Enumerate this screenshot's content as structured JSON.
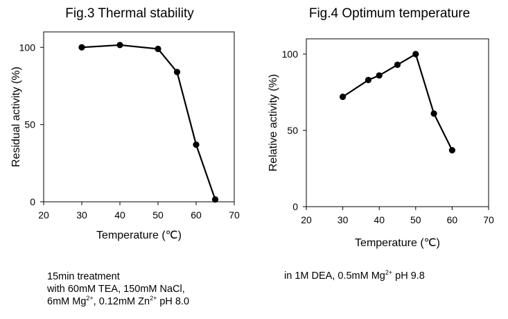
{
  "chart_data": [
    {
      "type": "line",
      "title": "Fig.3 Thermal stability",
      "xlabel": "Temperature (℃)",
      "ylabel": "Residual activity (%)",
      "xlim": [
        20,
        70
      ],
      "ylim": [
        0,
        110
      ],
      "xticks": [
        20,
        30,
        40,
        50,
        60,
        70
      ],
      "yticks": [
        0,
        50,
        100
      ],
      "grid": false,
      "series": [
        {
          "x": [
            30,
            40,
            50,
            55,
            60,
            65
          ],
          "y": [
            100,
            101.5,
            99,
            84,
            37,
            1.5
          ]
        }
      ],
      "note_lines": [
        {
          "parts": [
            {
              "t": "15min treatment"
            }
          ]
        },
        {
          "parts": [
            {
              "t": "with 60mM TEA, 150mM NaCl,"
            }
          ]
        },
        {
          "parts": [
            {
              "t": "6mM Mg"
            },
            {
              "sup": "2+"
            },
            {
              "t": ", 0.12mM Zn"
            },
            {
              "sup": "2+"
            },
            {
              "t": " pH 8.0"
            }
          ]
        }
      ]
    },
    {
      "type": "line",
      "title": "Fig.4 Optimum temperature",
      "xlabel": "Temperature (℃)",
      "ylabel": "Relative activity (%)",
      "xlim": [
        20,
        70
      ],
      "ylim": [
        0,
        110
      ],
      "xticks": [
        20,
        30,
        40,
        50,
        60,
        70
      ],
      "yticks": [
        0,
        50,
        100
      ],
      "grid": false,
      "series": [
        {
          "x": [
            30,
            37,
            40,
            45,
            50,
            55,
            60
          ],
          "y": [
            72,
            83,
            86,
            93,
            100,
            61,
            37
          ]
        }
      ],
      "note_lines": [
        {
          "parts": [
            {
              "t": "in 1M DEA, 0.5mM Mg"
            },
            {
              "sup": "2+"
            },
            {
              "t": " pH 9.8"
            }
          ]
        }
      ]
    }
  ]
}
